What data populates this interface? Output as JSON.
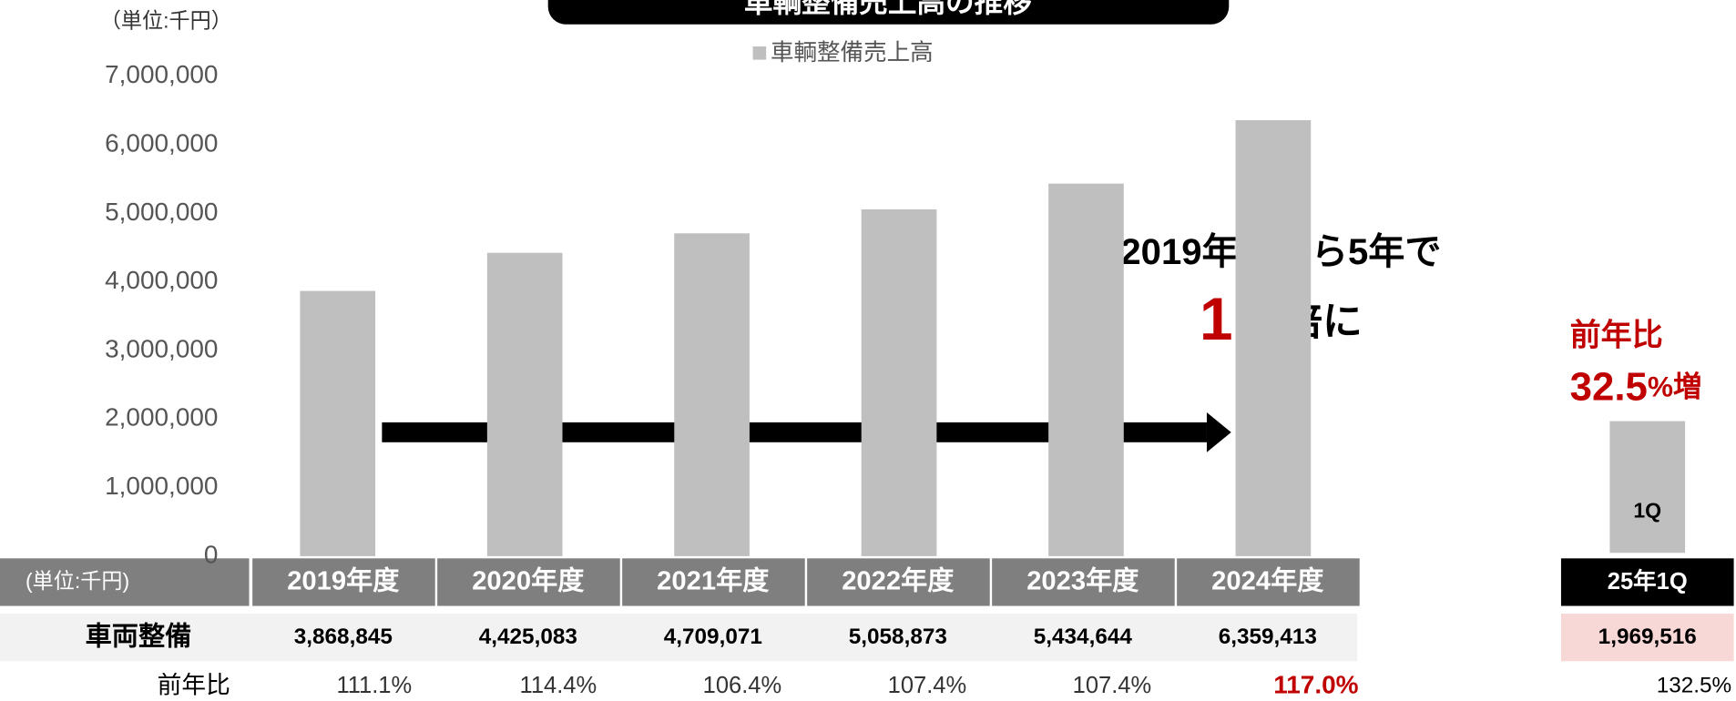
{
  "chart_data": {
    "type": "bar",
    "title": "車輌整備売上高の推移",
    "unit": "（単位:千円）",
    "categories": [
      "2019年度",
      "2020年度",
      "2021年度",
      "2022年度",
      "2023年度",
      "2024年度"
    ],
    "series": [
      {
        "name": "車輌整備売上高",
        "color": "#bfbfbf",
        "values": [
          3868845,
          4425083,
          4709071,
          5058873,
          5434644,
          6359413
        ],
        "value_labels": [
          "3,868,845",
          "4,425,083",
          "4,709,071",
          "5,058,873",
          "5,434,644",
          "6,359,413"
        ]
      }
    ],
    "ylim": [
      0,
      7000000
    ],
    "yticks": [
      0,
      {
        "value": 1000000,
        "label": "1,000,000"
      },
      {
        "value": 2000000,
        "label": "2,000,000"
      },
      {
        "value": 3000000,
        "label": "3,000,000"
      },
      {
        "value": 4000000,
        "label": "4,000,000"
      },
      {
        "value": 5000000,
        "label": "5,000,000"
      },
      {
        "value": 6000000,
        "label": "6,000,000"
      },
      {
        "value": 7000000,
        "label": "7,000,000"
      }
    ],
    "annotations": {
      "growth": "2019年度から5年で",
      "multiple": 1.6,
      "multiple_suffix": "倍に"
    }
  },
  "table": {
    "unit": "(単位:千円)",
    "row_label": "車両整備",
    "yoy_label": "前年比",
    "yoy": [
      "111.1%",
      "114.4%",
      "106.4%",
      "107.4%",
      "107.4%",
      "117.0%"
    ]
  },
  "quarter": {
    "bar_label": "1Q",
    "category": "25年1Q",
    "value": 1969516,
    "value_label": "1,969,516",
    "yoy": "132.5%",
    "headline": "前年比",
    "change": 32.5,
    "change_suffix": "%増"
  }
}
